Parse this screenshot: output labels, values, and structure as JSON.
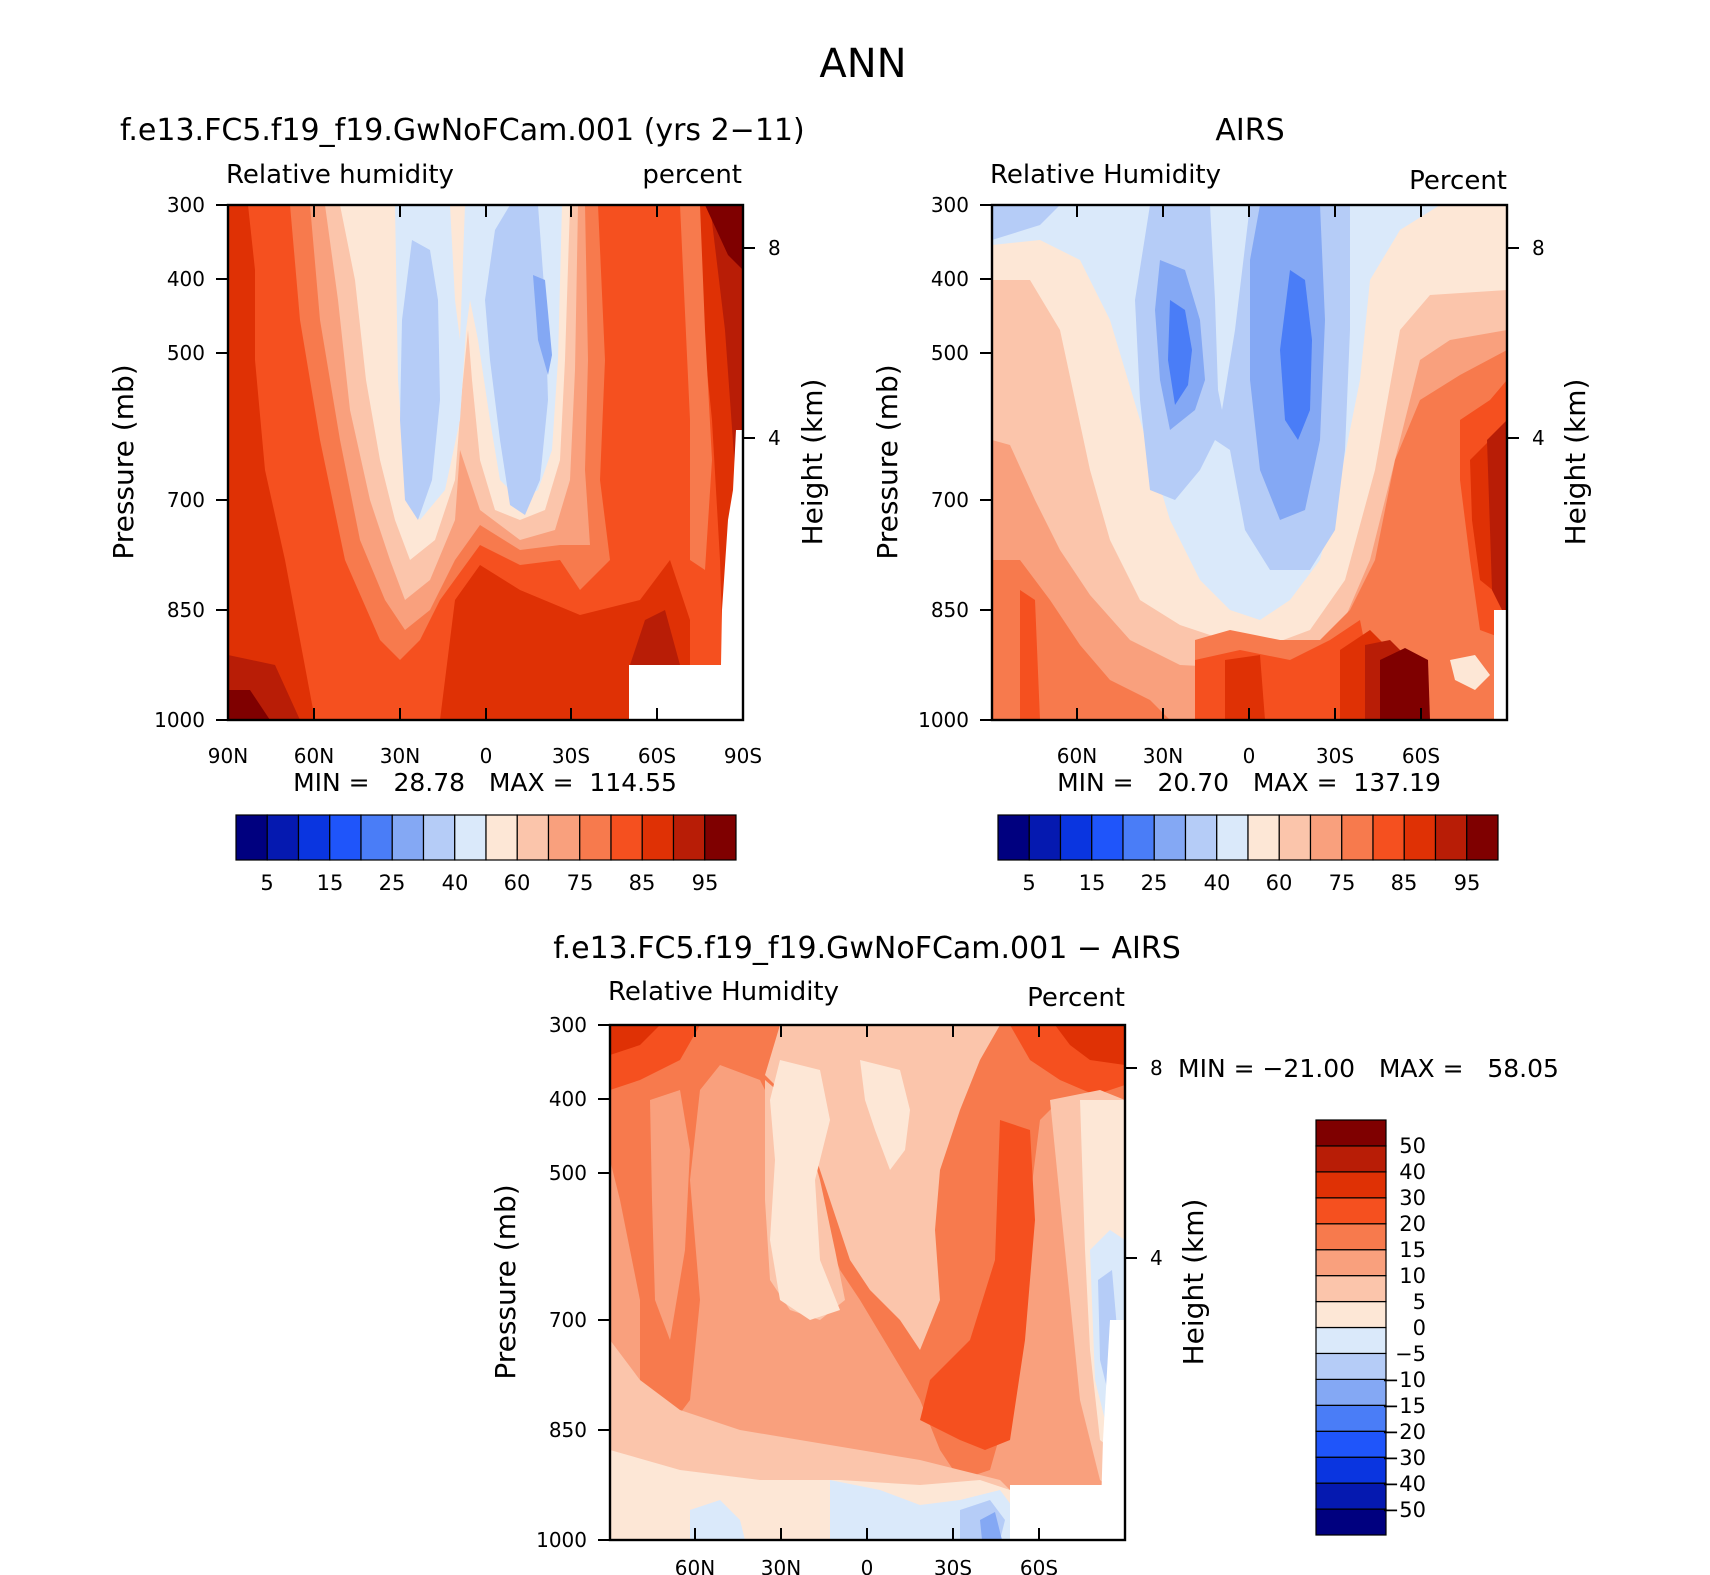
{
  "page_title": "ANN",
  "chart_data": [
    {
      "type": "heatmap",
      "title": "f.e13.FC5.f19_f19.GwNoFCam.001 (yrs 2−11)",
      "subtitle_left": "Relative humidity",
      "subtitle_right": "percent",
      "ylabel": "Pressure (mb)",
      "ylabel_right": "Height (km)",
      "x_ticks": [
        "90N",
        "60N",
        "30N",
        "0",
        "30S",
        "60S",
        "90S"
      ],
      "y_ticks": [
        "300",
        "400",
        "500",
        "700",
        "850",
        "1000"
      ],
      "right_ticks": [
        "8",
        "4"
      ],
      "min_max": "MIN =   28.78   MAX =  114.55",
      "levels": [
        5,
        10,
        15,
        20,
        25,
        30,
        40,
        50,
        60,
        70,
        75,
        80,
        85,
        90,
        95
      ],
      "colorbar_labels": [
        "5",
        "15",
        "25",
        "40",
        "60",
        "75",
        "85",
        "95"
      ]
    },
    {
      "type": "heatmap",
      "title": "AIRS",
      "subtitle_left": "Relative Humidity",
      "subtitle_right": "Percent",
      "ylabel": "Pressure (mb)",
      "ylabel_right": "Height (km)",
      "x_ticks": [
        "60N",
        "30N",
        "0",
        "30S",
        "60S"
      ],
      "y_ticks": [
        "300",
        "400",
        "500",
        "700",
        "850",
        "1000"
      ],
      "right_ticks": [
        "8",
        "4"
      ],
      "min_max": "MIN =   20.70   MAX =  137.19",
      "levels": [
        5,
        10,
        15,
        20,
        25,
        30,
        40,
        50,
        60,
        70,
        75,
        80,
        85,
        90,
        95
      ],
      "colorbar_labels": [
        "5",
        "15",
        "25",
        "40",
        "60",
        "75",
        "85",
        "95"
      ]
    },
    {
      "type": "heatmap",
      "title": "f.e13.FC5.f19_f19.GwNoFCam.001 − AIRS",
      "subtitle_left": "Relative Humidity",
      "subtitle_right": "Percent",
      "ylabel": "Pressure (mb)",
      "ylabel_right": "Height (km)",
      "x_ticks": [
        "60N",
        "30N",
        "0",
        "30S",
        "60S"
      ],
      "y_ticks": [
        "300",
        "400",
        "500",
        "700",
        "850",
        "1000"
      ],
      "right_ticks": [
        "8",
        "4"
      ],
      "min_max": "MIN = −21.00   MAX =   58.05",
      "levels": [
        -50,
        -40,
        -30,
        -20,
        -15,
        -10,
        -5,
        0,
        5,
        10,
        15,
        20,
        30,
        40,
        50
      ],
      "colorbar_labels": [
        "50",
        "40",
        "30",
        "20",
        "15",
        "10",
        "5",
        "0",
        "−5",
        "−10",
        "−15",
        "−20",
        "−30",
        "−40",
        "−50"
      ]
    }
  ],
  "colors": [
    "#00007f",
    "#0519b0",
    "#0a35e0",
    "#1f55fa",
    "#4a7df7",
    "#84a8f4",
    "#b5ccf7",
    "#dae9fa",
    "#fde7d6",
    "#fbc5ab",
    "#f9a07d",
    "#f77a4d",
    "#f5501f",
    "#df3105",
    "#b81d06",
    "#7f0000"
  ]
}
